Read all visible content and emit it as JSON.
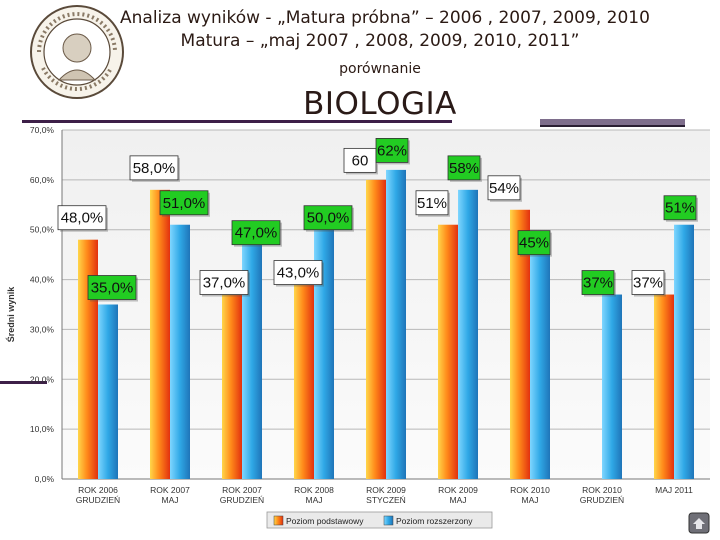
{
  "header": {
    "title_line1": "Analiza wyników - „Matura próbna” – 2006 , 2007, 2009, 2010",
    "title_line2": "Matura – „maj 2007 , 2008, 2009, 2010, 2011”",
    "subtitle": "porównanie",
    "subject": "BIOLOGIA"
  },
  "colors": {
    "basic_series": "#f07a1c",
    "extended_series": "#2e9ad8",
    "label_box": "#22cc22",
    "label_box_alt": "#ffffff",
    "rule": "#3d1f48",
    "plot_bg": "#f4f4f4"
  },
  "icons": {
    "seal": "school-seal-icon",
    "nav": "navigation-icon"
  },
  "chart_data": {
    "type": "bar",
    "ylabel": "Średni wynik",
    "ylim": [
      0,
      70
    ],
    "yticks": [
      "0,0%",
      "10,0%",
      "20,0%",
      "30,0%",
      "40,0%",
      "50,0%",
      "60,0%",
      "70,0%"
    ],
    "grid": true,
    "categories": [
      [
        "ROK 2006",
        "GRUDZIEŃ"
      ],
      [
        "ROK 2007",
        "MAJ"
      ],
      [
        "ROK 2007",
        "GRUDZIEŃ"
      ],
      [
        "ROK 2008",
        "MAJ"
      ],
      [
        "ROK 2009",
        "STYCZEŃ"
      ],
      [
        "ROK 2009",
        "MAJ"
      ],
      [
        "ROK 2010",
        "MAJ"
      ],
      [
        "ROK 2010",
        "GRUDZIEŃ"
      ],
      [
        "MAJ 2011",
        ""
      ]
    ],
    "series": [
      {
        "name": "Poziom podstawowy",
        "values": [
          48,
          58,
          37,
          43,
          60,
          51,
          54,
          null,
          37
        ],
        "labels": [
          "48,0%",
          "58,0%",
          "37,0%",
          "43,0%",
          "60",
          "51%",
          "54%",
          "",
          "37%"
        ]
      },
      {
        "name": "Poziom rozszerzony",
        "values": [
          35,
          51,
          47,
          50,
          62,
          58,
          45,
          37,
          51
        ],
        "labels": [
          "35,0%",
          "51,0%",
          "47,0%",
          "50,0%",
          "62%",
          "58%",
          "45%",
          "37%",
          "51%"
        ]
      }
    ],
    "legend": [
      "Poziom podstawowy",
      "Poziom rozszerzony"
    ],
    "legend_position": "bottom"
  }
}
